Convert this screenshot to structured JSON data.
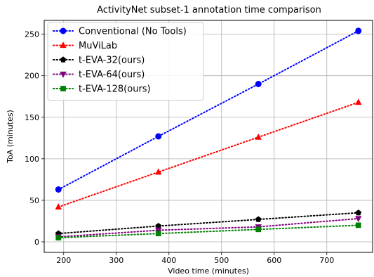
{
  "chart_data": {
    "type": "line",
    "title": "ActivityNet subset-1 annotation time comparison",
    "xlabel": "Video time (minutes)",
    "ylabel": "ToA (minutes)",
    "xlim": [
      163,
      787
    ],
    "ylim": [
      -12.7,
      266.6
    ],
    "xticks": [
      200,
      300,
      400,
      500,
      600,
      700
    ],
    "yticks": [
      0,
      50,
      100,
      150,
      200,
      250
    ],
    "grid": true,
    "legend_position": "top-left",
    "x": [
      190,
      380,
      570,
      760
    ],
    "series": [
      {
        "name": "Conventional (No Tools)",
        "color": "#0000ff",
        "marker": "circle",
        "values": [
          63,
          127,
          190,
          254
        ]
      },
      {
        "name": "MuViLab",
        "color": "#ff0000",
        "marker": "triangle-up",
        "values": [
          42,
          84,
          126,
          168
        ]
      },
      {
        "name": "t-EVA-32(ours)",
        "color": "#000000",
        "marker": "pentagon",
        "values": [
          10,
          19,
          27,
          35
        ]
      },
      {
        "name": "t-EVA-64(ours)",
        "color": "#800080",
        "marker": "triangle-down",
        "values": [
          6,
          14,
          18,
          28
        ]
      },
      {
        "name": "t-EVA-128(ours)",
        "color": "#008000",
        "marker": "square",
        "values": [
          5,
          10,
          15,
          20
        ]
      }
    ]
  }
}
